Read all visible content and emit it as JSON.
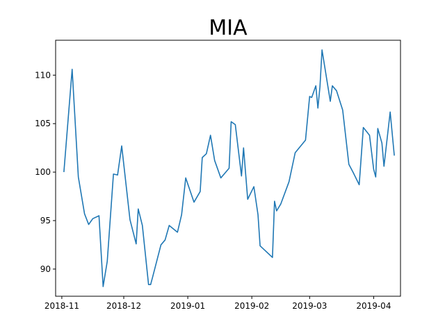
{
  "chart_data": {
    "type": "line",
    "title": "MIA",
    "xlabel": "",
    "ylabel": "",
    "grid": false,
    "legend": "none",
    "line_color": "#1f77b4",
    "xlim": [
      "2018-10-29",
      "2019-04-14"
    ],
    "ylim": [
      87.2,
      113.6
    ],
    "xticks": [
      "2018-11-01",
      "2018-12-01",
      "2019-01-01",
      "2019-02-01",
      "2019-03-01",
      "2019-04-01"
    ],
    "xtick_labels": [
      "2018-11",
      "2018-12",
      "2019-01",
      "2019-02",
      "2019-03",
      "2019-04"
    ],
    "yticks": [
      90,
      95,
      100,
      105,
      110
    ],
    "ytick_labels": [
      "90",
      "95",
      "100",
      "105",
      "110"
    ],
    "series": [
      {
        "x": [
          "2018-11-02",
          "2018-11-06",
          "2018-11-09",
          "2018-11-12",
          "2018-11-14",
          "2018-11-16",
          "2018-11-19",
          "2018-11-21",
          "2018-11-23",
          "2018-11-26",
          "2018-11-28",
          "2018-11-30",
          "2018-12-04",
          "2018-12-07",
          "2018-12-08",
          "2018-12-10",
          "2018-12-13",
          "2018-12-14",
          "2018-12-15",
          "2018-12-19",
          "2018-12-21",
          "2018-12-23",
          "2018-12-27",
          "2018-12-29",
          "2018-12-31",
          "2019-01-04",
          "2019-01-07",
          "2019-01-08",
          "2019-01-10",
          "2019-01-12",
          "2019-01-14",
          "2019-01-17",
          "2019-01-21",
          "2019-01-22",
          "2019-01-24",
          "2019-01-27",
          "2019-01-28",
          "2019-01-30",
          "2019-02-02",
          "2019-02-04",
          "2019-02-05",
          "2019-02-11",
          "2019-02-12",
          "2019-02-13",
          "2019-02-15",
          "2019-02-19",
          "2019-02-22",
          "2019-02-27",
          "2019-03-01",
          "2019-03-02",
          "2019-03-04",
          "2019-03-05",
          "2019-03-06",
          "2019-03-07",
          "2019-03-11",
          "2019-03-12",
          "2019-03-14",
          "2019-03-17",
          "2019-03-20",
          "2019-03-22",
          "2019-03-25",
          "2019-03-27",
          "2019-03-30",
          "2019-04-01",
          "2019-04-02",
          "2019-04-03",
          "2019-04-05",
          "2019-04-06",
          "2019-04-09",
          "2019-04-11"
        ],
        "y": [
          100.0,
          110.6,
          99.5,
          95.7,
          94.6,
          95.2,
          95.5,
          88.2,
          90.8,
          99.8,
          99.7,
          102.7,
          95.1,
          92.6,
          96.2,
          94.5,
          88.4,
          88.4,
          89.2,
          92.5,
          93.0,
          94.5,
          93.8,
          95.6,
          99.4,
          96.9,
          98.0,
          101.5,
          101.9,
          103.8,
          101.2,
          99.4,
          100.4,
          105.2,
          104.9,
          99.6,
          102.5,
          97.2,
          98.5,
          95.6,
          92.4,
          91.2,
          97.0,
          96.0,
          96.7,
          99.0,
          102.0,
          103.3,
          107.8,
          107.7,
          108.9,
          106.6,
          108.8,
          112.6,
          107.3,
          108.9,
          108.4,
          106.4,
          100.8,
          100.0,
          98.7,
          104.6,
          103.8,
          100.3,
          99.5,
          104.5,
          103.0,
          100.6,
          106.2,
          101.7
        ]
      }
    ]
  }
}
